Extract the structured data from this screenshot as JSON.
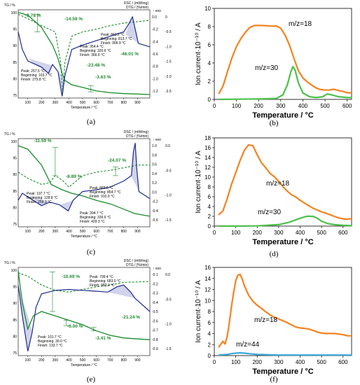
{
  "colors": {
    "tg": "#1b8a2b",
    "dtg": "#1b8a2b",
    "dsc": "#1d2a8c",
    "shade": "#9aa0d0",
    "ms_orange": "#f5821f",
    "ms_green": "#4cc04a",
    "ms_blue": "#3aa7d8",
    "axis": "#000000"
  },
  "panels": [
    {
      "id": "a",
      "label": "(a)",
      "kind": "thermal",
      "left_axis_title": "TG / %",
      "right_axis_title_1": "DSC / (mW/mg)",
      "right_axis_title_2": "DTG / (%/min)",
      "exo_label": "↑ exo",
      "x_label": "Temperature / °C",
      "x_ticks": [
        100,
        200,
        300,
        400,
        500,
        600,
        700,
        800,
        900
      ],
      "y_left_ticks": [
        100,
        95,
        90,
        85,
        80,
        75
      ],
      "y_right_ticks": [
        "0.0",
        "-0.2",
        "-0.4",
        "-0.6",
        "-0.8",
        "-1.0",
        "-1.2"
      ],
      "y_right_ticks_2": [
        "0",
        "-0.5",
        "-1.0",
        "-1.5",
        "-2.0",
        "-2.5"
      ],
      "percents": [
        "-2.78 %",
        "-14.59 %",
        "-23.48 %",
        "-46.01 %",
        "-3.63 %"
      ],
      "peaks": [
        {
          "lines": [
            "Peak: 354.4 °C",
            "Beginning: 320.6 °C",
            "Finish: 366.6 °C"
          ]
        },
        {
          "lines": [
            "Peak: 863.2 °C",
            "Beginning: 813.7 °C",
            "Finish: 906.9 °C"
          ]
        },
        {
          "lines": [
            "Peak: 257.5 °C",
            "Beginning: 103.7 °C",
            "Finish: 275.8 °C"
          ]
        }
      ]
    },
    {
      "id": "b",
      "label": "(b)",
      "kind": "ms",
      "chart_data": {
        "type": "line",
        "xlabel": "Temperature / °C",
        "ylabel": "Ion current·10⁻¹⁰ / A",
        "xlim": [
          0,
          620
        ],
        "ylim": [
          0,
          10
        ],
        "x_ticks": [
          0,
          100,
          200,
          300,
          400,
          500,
          600
        ],
        "y_ticks": [
          0,
          2,
          4,
          6,
          8,
          10
        ],
        "series": [
          {
            "name": "m/z=18",
            "color": "#f5821f",
            "x": [
              20,
              40,
              60,
              80,
              100,
              120,
              140,
              160,
              180,
              200,
              220,
              240,
              260,
              280,
              300,
              320,
              340,
              360,
              380,
              400,
              420,
              440,
              460,
              480,
              500,
              520,
              540,
              560,
              580,
              600,
              620
            ],
            "y": [
              0.6,
              1.4,
              3.0,
              4.6,
              5.9,
              6.8,
              7.4,
              7.8,
              8.0,
              8.1,
              8.2,
              8.2,
              8.1,
              8.0,
              7.7,
              7.0,
              6.0,
              4.6,
              3.2,
              2.3,
              1.8,
              1.5,
              1.3,
              1.2,
              1.1,
              1.0,
              1.0,
              0.9,
              0.9,
              0.85,
              0.8
            ]
          },
          {
            "name": "m/z=30",
            "color": "#4cc04a",
            "x": [
              20,
              100,
              200,
              280,
              310,
              330,
              345,
              355,
              365,
              380,
              400,
              430,
              460,
              490,
              510,
              530,
              560,
              600,
              620
            ],
            "y": [
              0.0,
              0.02,
              0.05,
              0.1,
              0.5,
              1.6,
              3.0,
              3.6,
              3.2,
              1.8,
              0.7,
              0.3,
              0.2,
              0.3,
              0.6,
              0.5,
              0.3,
              0.2,
              0.2
            ]
          }
        ]
      }
    },
    {
      "id": "c",
      "label": "(c)",
      "kind": "thermal",
      "left_axis_title": "TG / %",
      "right_axis_title_1": "DSC / (mW/mg)",
      "right_axis_title_2": "DTG / (%/min)",
      "exo_label": "↑ exo",
      "x_label": "Temperature / °C",
      "x_ticks": [
        100,
        200,
        300,
        400,
        500,
        600,
        700,
        800,
        900
      ],
      "y_left_ticks": [
        100,
        95,
        90,
        85,
        80,
        75
      ],
      "y_right_ticks": [
        "1.0",
        "0.8",
        "0.6",
        "0.4",
        "0.2",
        "0.0",
        "-0.2",
        "-0.4",
        "-0.6"
      ],
      "y_right_ticks_2": [
        "0.0",
        "-0.5",
        "-1.0",
        "-1.5"
      ],
      "percents": [
        "-11.59 %",
        "-24.07 %",
        "-8.89 %"
      ],
      "peaks": [
        {
          "lines": [
            "Peak: 883.5 °C",
            "Beginning: 854.7 °C",
            "Finish: 910.9 °C"
          ]
        },
        {
          "lines": [
            "Peak: 197.7 °C",
            "Beginning: 128.8 °C",
            "Finish: 259.3 °C"
          ]
        },
        {
          "lines": [
            "Peak: 394.7 °C",
            "Beginning: 336.6 °C",
            "Finish: 429.3 °C"
          ]
        }
      ]
    },
    {
      "id": "d",
      "label": "(d)",
      "kind": "ms",
      "chart_data": {
        "type": "line",
        "xlabel": "Temperature / °C",
        "ylabel": "Ion current·10⁻¹⁰ / A",
        "xlim": [
          0,
          640
        ],
        "ylim": [
          0,
          18
        ],
        "x_ticks": [
          0,
          100,
          200,
          300,
          400,
          500,
          600
        ],
        "y_ticks": [
          0,
          2,
          4,
          6,
          8,
          10,
          12,
          14,
          16,
          18
        ],
        "series": [
          {
            "name": "m/z=18",
            "color": "#f5821f",
            "x": [
              20,
              40,
              60,
              80,
              100,
              120,
              140,
              160,
              180,
              200,
              220,
              240,
              260,
              280,
              300,
              320,
              340,
              360,
              380,
              400,
              420,
              440,
              460,
              480,
              500,
              520,
              540,
              560,
              580,
              600,
              620,
              640
            ],
            "y": [
              2.3,
              3.0,
              5.5,
              8.5,
              11.0,
              13.5,
              15.5,
              16.5,
              16.3,
              14.5,
              13.0,
              12.0,
              10.8,
              10.0,
              9.0,
              8.0,
              7.2,
              6.5,
              6.0,
              5.2,
              4.6,
              4.1,
              3.7,
              3.4,
              3.0,
              2.6,
              2.2,
              1.9,
              1.7,
              1.6,
              1.5,
              1.5
            ]
          },
          {
            "name": "m/z=30",
            "color": "#4cc04a",
            "x": [
              20,
              100,
              200,
              300,
              350,
              400,
              430,
              460,
              480,
              500,
              530,
              560,
              600,
              640
            ],
            "y": [
              0.0,
              0.0,
              0.05,
              0.3,
              0.8,
              1.6,
              2.0,
              2.0,
              1.6,
              1.0,
              0.5,
              0.3,
              0.15,
              0.1
            ]
          }
        ]
      }
    },
    {
      "id": "e",
      "label": "(e)",
      "kind": "thermal",
      "left_axis_title": "TG / %",
      "right_axis_title_1": "DSC / (mW/mg)",
      "right_axis_title_2": "DTG / (%/min)",
      "exo_label": "↑ exo",
      "x_label": "Temperature / °C",
      "x_ticks": [
        100,
        200,
        300,
        400,
        500,
        600,
        700,
        800,
        900
      ],
      "y_left_ticks": [
        100,
        95,
        90,
        85,
        80,
        75
      ],
      "y_right_ticks": [
        "-0.1",
        "-0.2",
        "-0.3",
        "-0.4",
        "-0.5",
        "-0.6",
        "-0.7",
        "-0.8",
        "-0.9"
      ],
      "y_right_ticks_2": [
        "0.0",
        "-0.5",
        "-1.0",
        "-1.5"
      ],
      "percents": [
        "-10.69 %",
        "-21.24 %",
        "-6.00 %",
        "-3.41 %"
      ],
      "peaks": [
        {
          "lines": [
            "Peak: 799.4 °C",
            "Beginning: 683.0 °C",
            "Finish: 882.2 °C"
          ]
        },
        {
          "lines": [
            "Peak: 101.7 °C",
            "Beginning: 30.0 °C",
            "Finish: 133.7 °C"
          ]
        }
      ]
    },
    {
      "id": "f",
      "label": "(f)",
      "kind": "ms",
      "chart_data": {
        "type": "line",
        "xlabel": "Temperature / °C",
        "ylabel": "Ion current·10⁻¹⁰ / A",
        "xlim": [
          0,
          640
        ],
        "ylim": [
          0,
          16
        ],
        "x_ticks": [
          0,
          100,
          200,
          300,
          400,
          500,
          600
        ],
        "y_ticks": [
          0,
          2,
          4,
          6,
          8,
          10,
          12,
          14,
          16
        ],
        "series": [
          {
            "name": "m/z=18",
            "color": "#f5821f",
            "x": [
              20,
              40,
              50,
              60,
              70,
              80,
              90,
              100,
              110,
              120,
              130,
              140,
              160,
              180,
              200,
              220,
              240,
              260,
              280,
              300,
              320,
              340,
              360,
              380,
              400,
              420,
              440,
              460,
              480,
              500,
              520,
              540,
              560,
              580,
              600,
              620,
              640
            ],
            "y": [
              1.5,
              2.5,
              2.0,
              3.5,
              6.0,
              9.0,
              11.5,
              13.5,
              14.5,
              14.7,
              14.0,
              12.8,
              11.0,
              9.8,
              9.0,
              8.5,
              8.0,
              7.5,
              7.0,
              6.6,
              6.2,
              5.9,
              5.6,
              5.3,
              5.1,
              4.9,
              4.7,
              4.5,
              4.3,
              4.2,
              4.1,
              4.0,
              3.9,
              3.8,
              3.8,
              3.7,
              3.7
            ]
          },
          {
            "name": "m/z=44",
            "color": "#3aa7d8",
            "x": [
              20,
              60,
              80,
              100,
              120,
              140,
              160,
              200,
              300,
              400,
              500,
              640
            ],
            "y": [
              0.1,
              0.2,
              0.35,
              0.45,
              0.5,
              0.45,
              0.35,
              0.2,
              0.1,
              0.1,
              0.1,
              0.1
            ]
          }
        ]
      }
    }
  ]
}
